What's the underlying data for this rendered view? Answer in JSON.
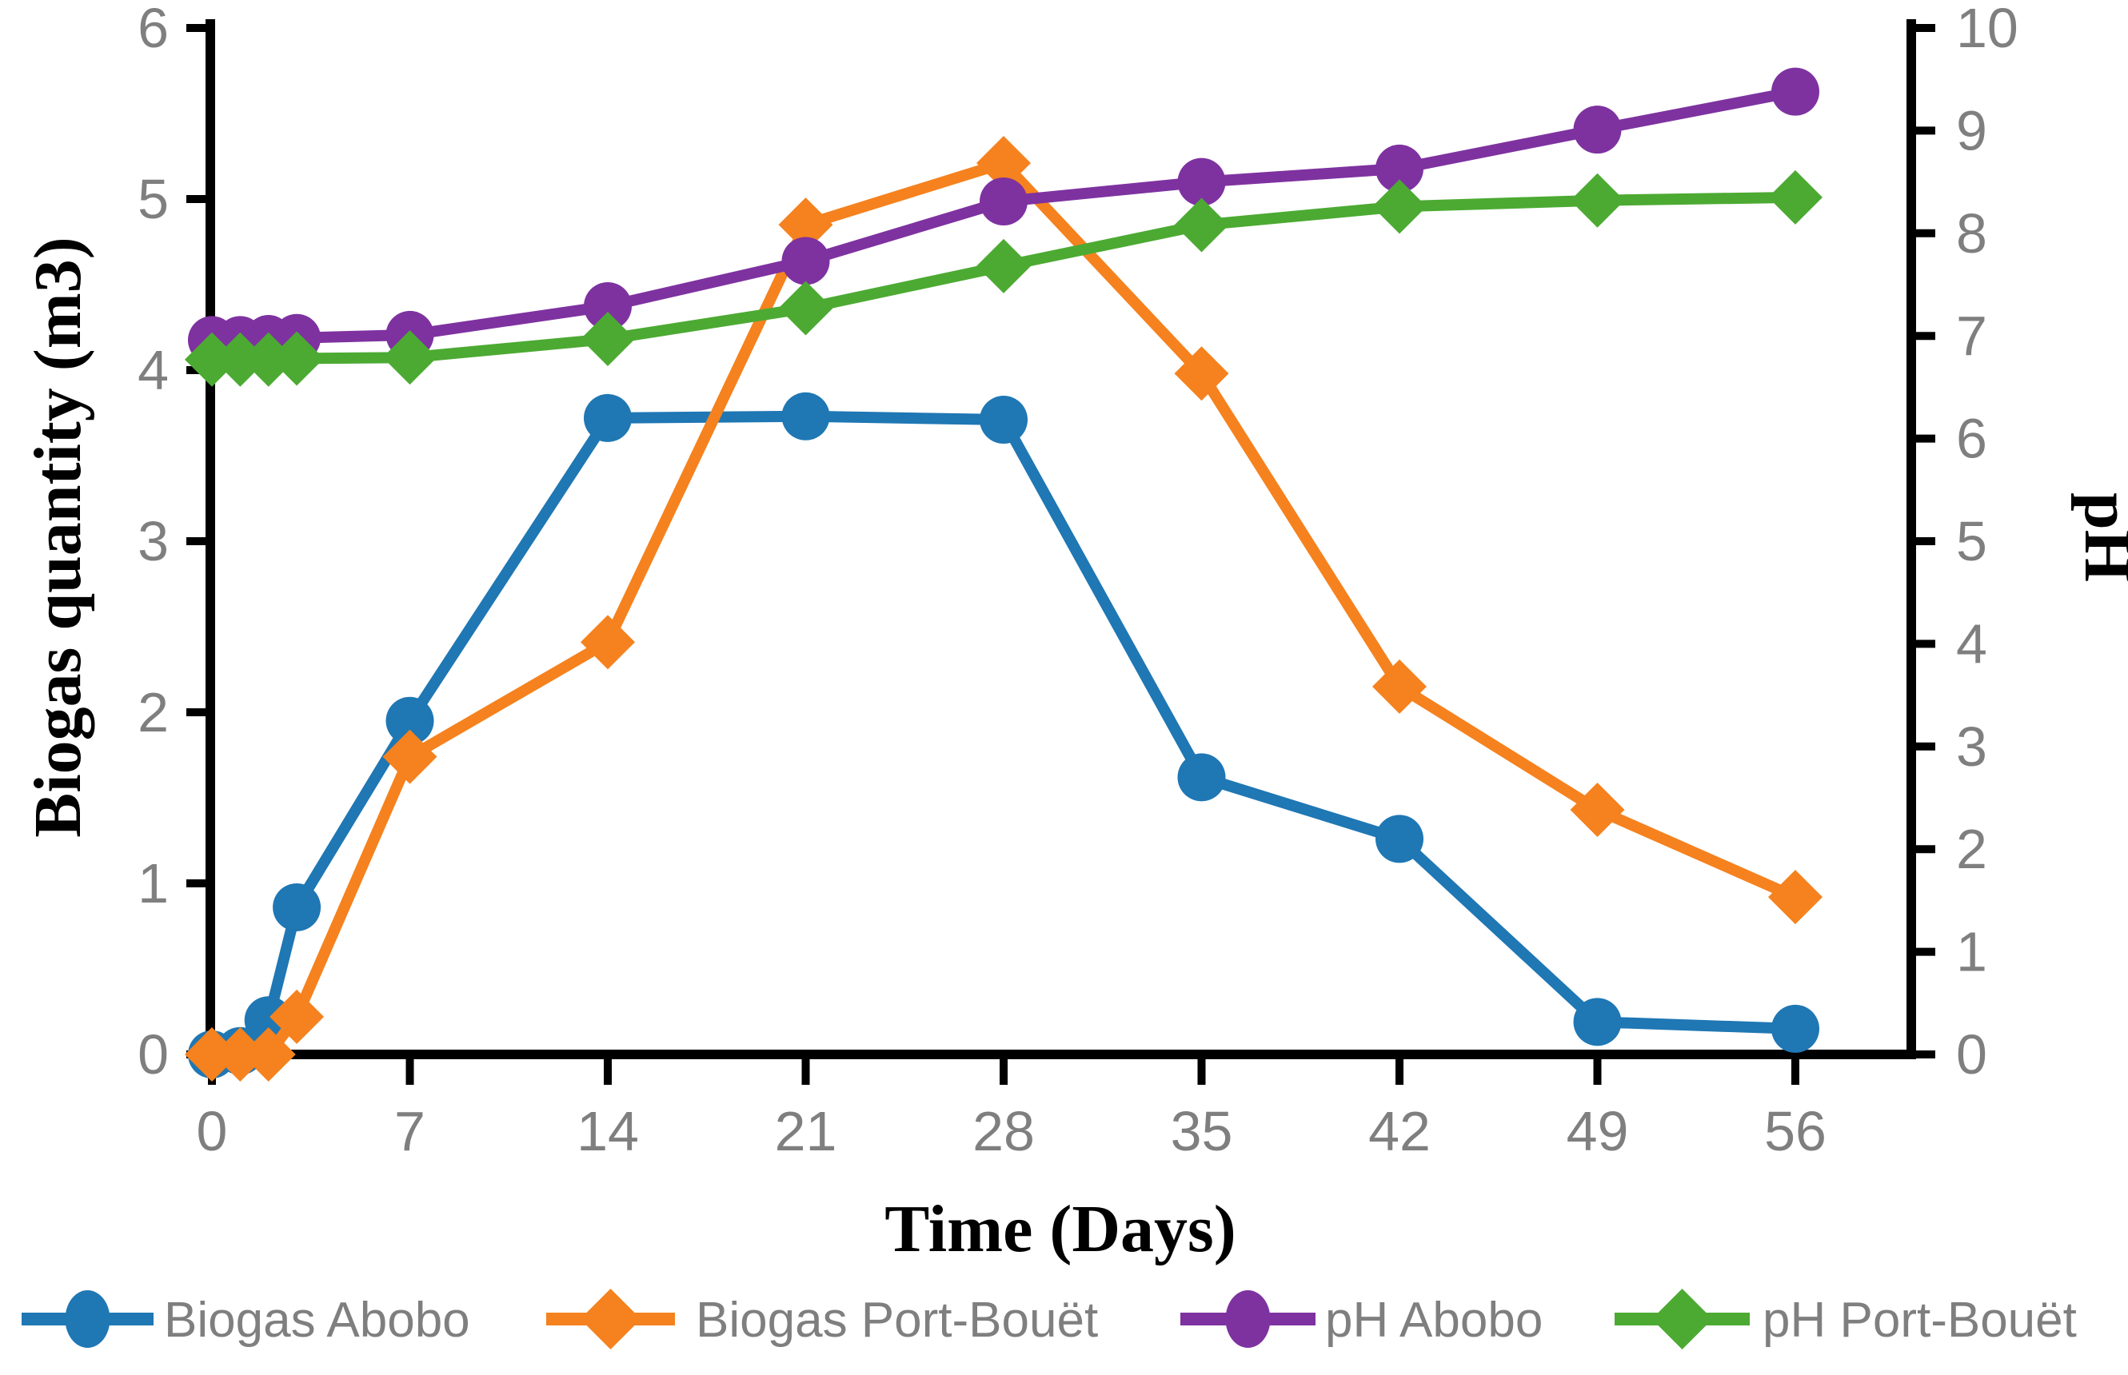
{
  "chart_data": {
    "type": "line",
    "title": "",
    "xlabel": "Time (Days)",
    "ylabel_left": "Biogas quantity (m3)",
    "ylabel_right": "pH",
    "x": [
      0,
      1,
      2,
      3,
      7,
      14,
      21,
      28,
      35,
      42,
      49,
      56
    ],
    "x_tick_labels": [
      0,
      7,
      14,
      21,
      28,
      35,
      42,
      49,
      56
    ],
    "y_left_ticks": [
      0,
      1,
      2,
      3,
      4,
      5,
      6
    ],
    "y_right_ticks": [
      0,
      1,
      2,
      3,
      4,
      5,
      6,
      7,
      8,
      9,
      10
    ],
    "y_left_range": [
      0,
      6
    ],
    "y_right_range": [
      0,
      10
    ],
    "x_range": [
      0,
      56
    ],
    "grid": "off",
    "legend_position": "bottom",
    "axis_color": "#000000",
    "tick_label_color": "#7f7f7f",
    "series": [
      {
        "name": "Biogas Abobo",
        "axis": "left",
        "marker": "circle",
        "color": "#1f77b4",
        "values": [
          0,
          0.02,
          0.2,
          0.86,
          1.95,
          3.72,
          3.73,
          3.71,
          1.62,
          1.26,
          0.19,
          0.15
        ]
      },
      {
        "name": "Biogas Port-Bouët",
        "axis": "left",
        "marker": "diamond",
        "color": "#f5821e",
        "values": [
          0,
          0,
          0,
          0.22,
          1.74,
          2.41,
          4.85,
          5.21,
          3.98,
          2.15,
          1.43,
          0.92
        ]
      },
      {
        "name": "pH Abobo",
        "axis": "right",
        "marker": "circle",
        "color": "#7e32a0",
        "values": [
          6.96,
          6.96,
          6.97,
          6.98,
          7.01,
          7.29,
          7.73,
          8.31,
          8.5,
          8.63,
          9.01,
          9.38
        ]
      },
      {
        "name": "pH Port-Bouët",
        "axis": "right",
        "marker": "diamond",
        "color": "#4caa32",
        "values": [
          6.77,
          6.77,
          6.77,
          6.78,
          6.79,
          6.97,
          7.27,
          7.68,
          8.08,
          8.26,
          8.32,
          8.35
        ]
      }
    ]
  }
}
